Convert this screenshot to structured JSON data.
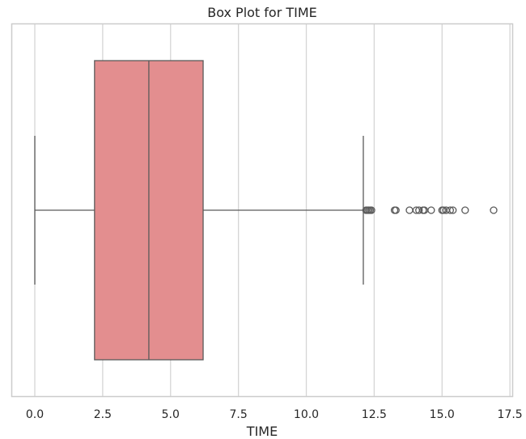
{
  "chart_data": {
    "type": "box",
    "title": "Box Plot for TIME",
    "xlabel": "TIME",
    "ylabel": "",
    "orientation": "horizontal",
    "xlim": [
      -0.85,
      17.6
    ],
    "x_ticks": [
      0.0,
      2.5,
      5.0,
      7.5,
      10.0,
      12.5,
      15.0,
      17.5
    ],
    "x_tick_labels": [
      "0.0",
      "2.5",
      "5.0",
      "7.5",
      "10.0",
      "12.5",
      "15.0",
      "17.5"
    ],
    "grid": true,
    "series": [
      {
        "min": 0.0,
        "q1": 2.2,
        "median": 4.2,
        "q3": 6.2,
        "max": 12.1,
        "outliers": [
          12.2,
          12.25,
          12.3,
          12.35,
          12.4,
          13.25,
          13.3,
          13.8,
          14.05,
          14.15,
          14.3,
          14.35,
          14.6,
          15.0,
          15.05,
          15.15,
          15.3,
          15.4,
          15.85,
          16.9
        ]
      }
    ],
    "colors": {
      "box_fill": "#e38e8f",
      "line": "#5a5a5a",
      "grid": "#d5d5d5",
      "frame": "#cccccc"
    }
  }
}
